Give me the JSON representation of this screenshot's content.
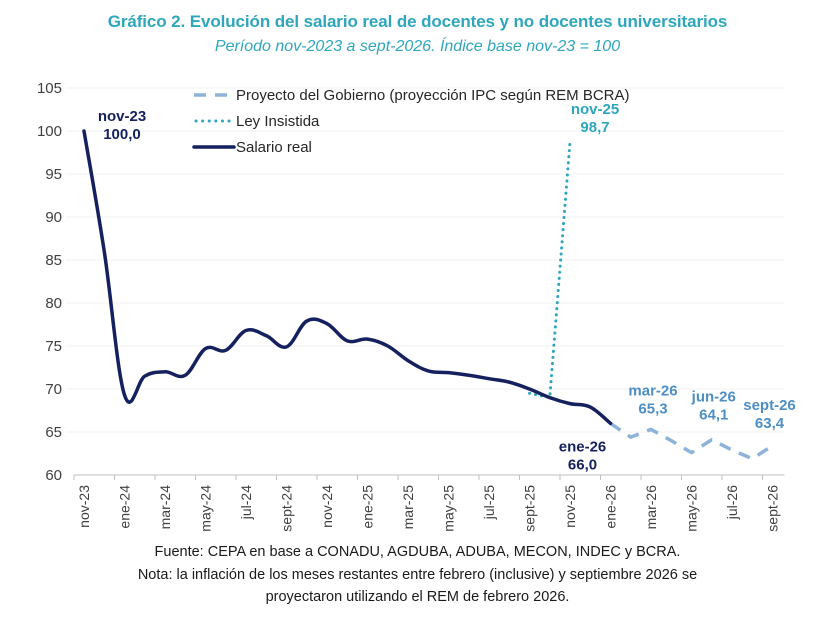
{
  "chart_data": {
    "type": "line",
    "title": "Gráfico 2. Evolución del salario real de docentes y no docentes universitarios",
    "subtitle": "Período nov-2023 a sept-2026. Índice base nov-23 = 100",
    "xlabel": "",
    "ylabel": "",
    "ylim": [
      60,
      105
    ],
    "yticks": [
      60,
      65,
      70,
      75,
      80,
      85,
      90,
      95,
      100,
      105
    ],
    "grid": true,
    "legend_position": "top-center",
    "x": [
      "nov-23",
      "dic-23",
      "ene-24",
      "feb-24",
      "mar-24",
      "abr-24",
      "may-24",
      "jun-24",
      "jul-24",
      "ago-24",
      "sept-24",
      "oct-24",
      "nov-24",
      "dic-24",
      "ene-25",
      "feb-25",
      "mar-25",
      "abr-25",
      "may-25",
      "jun-25",
      "jul-25",
      "ago-25",
      "sept-25",
      "oct-25",
      "nov-25",
      "dic-25",
      "ene-26",
      "feb-26",
      "mar-26",
      "abr-26",
      "may-26",
      "jun-26",
      "jul-26",
      "ago-26",
      "sept-26"
    ],
    "xtick_labels": [
      "nov-23",
      "ene-24",
      "mar-24",
      "may-24",
      "jul-24",
      "sept-24",
      "nov-24",
      "ene-25",
      "mar-25",
      "may-25",
      "jul-25",
      "sept-25",
      "nov-25",
      "ene-26",
      "mar-26",
      "may-26",
      "jul-26",
      "sept-26"
    ],
    "series": [
      {
        "name": "Proyecto del Gobierno (proyección IPC según REM BCRA)",
        "style": "dashed",
        "color": "#8db3d9",
        "points": [
          {
            "x": "ene-26",
            "y": 66.0
          },
          {
            "x": "feb-26",
            "y": 64.4
          },
          {
            "x": "mar-26",
            "y": 65.3
          },
          {
            "x": "abr-26",
            "y": 64.0
          },
          {
            "x": "may-26",
            "y": 62.6
          },
          {
            "x": "jun-26",
            "y": 64.1
          },
          {
            "x": "jul-26",
            "y": 62.9
          },
          {
            "x": "ago-26",
            "y": 61.9
          },
          {
            "x": "sept-26",
            "y": 63.4
          }
        ]
      },
      {
        "name": "Ley Insistida",
        "style": "dotted",
        "color": "#2ea6bd",
        "points": [
          {
            "x": "sept-25",
            "y": 69.5
          },
          {
            "x": "oct-25",
            "y": 69.0
          },
          {
            "x": "nov-25",
            "y": 98.7
          }
        ]
      },
      {
        "name": "Salario real",
        "style": "solid",
        "color": "#14215e",
        "points": [
          {
            "x": "nov-23",
            "y": 100.0
          },
          {
            "x": "dic-23",
            "y": 86.0
          },
          {
            "x": "ene-24",
            "y": 69.3
          },
          {
            "x": "feb-24",
            "y": 71.5
          },
          {
            "x": "mar-24",
            "y": 72.0
          },
          {
            "x": "abr-24",
            "y": 71.6
          },
          {
            "x": "may-24",
            "y": 74.7
          },
          {
            "x": "jun-24",
            "y": 74.5
          },
          {
            "x": "jul-24",
            "y": 76.8
          },
          {
            "x": "ago-24",
            "y": 76.2
          },
          {
            "x": "sept-24",
            "y": 74.9
          },
          {
            "x": "oct-24",
            "y": 77.9
          },
          {
            "x": "nov-24",
            "y": 77.6
          },
          {
            "x": "dic-24",
            "y": 75.6
          },
          {
            "x": "ene-25",
            "y": 75.8
          },
          {
            "x": "feb-25",
            "y": 75.0
          },
          {
            "x": "mar-25",
            "y": 73.3
          },
          {
            "x": "abr-25",
            "y": 72.1
          },
          {
            "x": "may-25",
            "y": 71.9
          },
          {
            "x": "jun-25",
            "y": 71.6
          },
          {
            "x": "jul-25",
            "y": 71.2
          },
          {
            "x": "ago-25",
            "y": 70.8
          },
          {
            "x": "sept-25",
            "y": 70.0
          },
          {
            "x": "oct-25",
            "y": 69.0
          },
          {
            "x": "nov-25",
            "y": 68.3
          },
          {
            "x": "dic-25",
            "y": 67.9
          },
          {
            "x": "ene-26",
            "y": 66.0
          }
        ]
      }
    ],
    "annotations": [
      {
        "label": "nov-23",
        "value": "100,0",
        "x": "nov-23",
        "series": "Salario real",
        "color": "#14215e",
        "anchor": "right-below"
      },
      {
        "label": "nov-25",
        "value": "98,7",
        "x": "nov-25",
        "series": "Ley Insistida",
        "color": "#2ea6bd",
        "anchor": "right"
      },
      {
        "label": "ene-26",
        "value": "66,0",
        "x": "ene-26",
        "series": "Salario real",
        "color": "#14215e",
        "anchor": "below-left"
      },
      {
        "label": "mar-26",
        "value": "65,3",
        "x": "mar-26",
        "series": "Proyecto del Gobierno (proyección IPC según REM BCRA)",
        "color": "#4d8fc4",
        "anchor": "above"
      },
      {
        "label": "jun-26",
        "value": "64,1",
        "x": "jun-26",
        "series": "Proyecto del Gobierno (proyección IPC según REM BCRA)",
        "color": "#4d8fc4",
        "anchor": "above"
      },
      {
        "label": "sept-26",
        "value": "63,4",
        "x": "sept-26",
        "series": "Proyecto del Gobierno (proyección IPC según REM BCRA)",
        "color": "#4d8fc4",
        "anchor": "above"
      }
    ]
  },
  "footer": {
    "source": "Fuente: CEPA en base a CONADU, AGDUBA, ADUBA, MECON, INDEC y BCRA.",
    "note_line1": "Nota: la inflación de los meses restantes entre febrero (inclusive) y septiembre 2026 se",
    "note_line2": "proyectaron utilizando el REM de febrero 2026."
  }
}
